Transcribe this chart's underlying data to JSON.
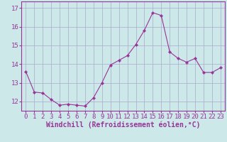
{
  "x": [
    0,
    1,
    2,
    3,
    4,
    5,
    6,
    7,
    8,
    9,
    10,
    11,
    12,
    13,
    14,
    15,
    16,
    17,
    18,
    19,
    20,
    21,
    22,
    23
  ],
  "y": [
    13.6,
    12.5,
    12.45,
    12.1,
    11.8,
    11.85,
    11.8,
    11.75,
    12.2,
    13.0,
    13.95,
    14.2,
    14.45,
    15.05,
    15.8,
    16.75,
    16.6,
    14.65,
    14.3,
    14.1,
    14.3,
    13.55,
    13.55,
    13.8
  ],
  "line_color": "#993399",
  "marker": "D",
  "marker_size": 2.2,
  "bg_color": "#cce8e8",
  "grid_color": "#aaaacc",
  "xlabel": "Windchill (Refroidissement éolien,°C)",
  "xlabel_fontsize": 7,
  "ylabel_ticks": [
    12,
    13,
    14,
    15,
    16,
    17
  ],
  "xtick_labels": [
    "0",
    "1",
    "2",
    "3",
    "4",
    "5",
    "6",
    "7",
    "8",
    "9",
    "10",
    "11",
    "12",
    "13",
    "14",
    "15",
    "16",
    "17",
    "18",
    "19",
    "20",
    "21",
    "22",
    "23"
  ],
  "ylim": [
    11.5,
    17.35
  ],
  "xlim": [
    -0.5,
    23.5
  ],
  "tick_fontsize": 6.5,
  "tick_color": "#993399",
  "label_color": "#993399"
}
